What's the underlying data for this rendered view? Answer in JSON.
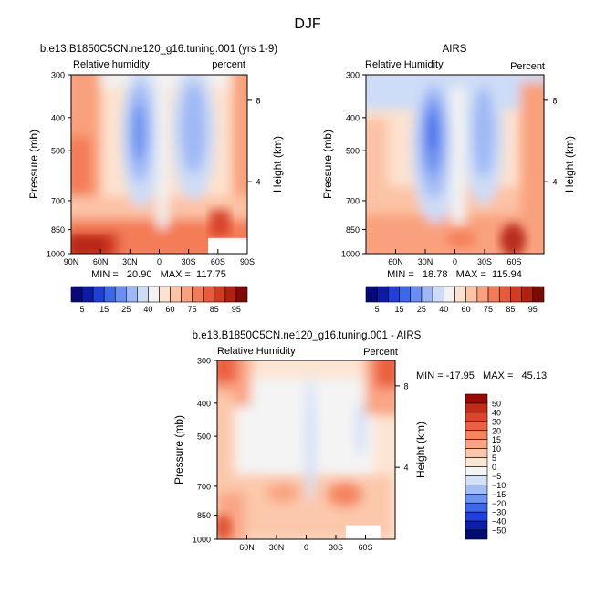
{
  "figure": {
    "title": "DJF"
  },
  "colors": {
    "abs_palette": [
      "#08087a",
      "#0d1aa8",
      "#1f3fd6",
      "#3a68e8",
      "#6a8ff0",
      "#9fb8f5",
      "#cddcf7",
      "#f2f2f2",
      "#fde2cf",
      "#fcc3a5",
      "#f9a07c",
      "#f47b57",
      "#e85a3a",
      "#d23a22",
      "#b22012",
      "#7e0a08"
    ],
    "diff_palette": [
      "#020b6e",
      "#0a1ea8",
      "#1f3fd6",
      "#3d68e8",
      "#6e93f0",
      "#a3bef5",
      "#d2e0f8",
      "#f4f4f4",
      "#fde5d3",
      "#fcc8ab",
      "#f9a584",
      "#f5845f",
      "#ec6140",
      "#dc4528",
      "#c02c15",
      "#990a06"
    ]
  },
  "chart_data": [
    {
      "type": "heatmap",
      "name": "model",
      "title": "b.e13.B1850C5CN.ne120_g16.tuning.001 (yrs 1-9)",
      "left_label": "Relative humidity",
      "right_label": "percent",
      "ylabel": "Pressure (mb)",
      "ylabel_right": "Height (km)",
      "yticks": [
        "300",
        "400",
        "500",
        "700",
        "850",
        "1000"
      ],
      "ytick_values": [
        300,
        400,
        500,
        700,
        850,
        1000
      ],
      "height_ticks": [
        "8",
        "4"
      ],
      "height_tick_pressures": [
        356,
        616
      ],
      "xticks": [
        "90N",
        "60N",
        "30N",
        "0",
        "30S",
        "60S",
        "90S"
      ],
      "xtick_values": [
        90,
        60,
        30,
        0,
        -30,
        -60,
        -90
      ],
      "xlim": [
        90,
        -90
      ],
      "ylim": [
        300,
        1000
      ],
      "stats": "MIN =   20.90   MAX =  117.75",
      "min": 20.9,
      "max": 117.75,
      "missing_box": {
        "lat_from": -50,
        "lat_to": -90,
        "p_from": 900,
        "p_to": 1000
      }
    },
    {
      "type": "heatmap",
      "name": "obs",
      "title": "AIRS",
      "left_label": "Relative Humidity",
      "right_label": "Percent",
      "ylabel": "Pressure (mb)",
      "ylabel_right": "Height (km)",
      "yticks": [
        "300",
        "400",
        "500",
        "700",
        "850",
        "1000"
      ],
      "ytick_values": [
        300,
        400,
        500,
        700,
        850,
        1000
      ],
      "height_ticks": [
        "8",
        "4"
      ],
      "height_tick_pressures": [
        356,
        616
      ],
      "xticks": [
        "60N",
        "30N",
        "0",
        "30S",
        "60S"
      ],
      "xtick_values": [
        60,
        30,
        0,
        -30,
        -60
      ],
      "xlim": [
        90,
        -90
      ],
      "ylim": [
        300,
        1000
      ],
      "stats": "MIN =   18.78   MAX =  115.94",
      "min": 18.78,
      "max": 115.94
    },
    {
      "type": "heatmap",
      "name": "diff",
      "title": "b.e13.B1850C5CN.ne120_g16.tuning.001 - AIRS",
      "left_label": "Relative Humidity",
      "right_label": "Percent",
      "ylabel": "Pressure (mb)",
      "ylabel_right": "Height (km)",
      "yticks": [
        "300",
        "400",
        "500",
        "700",
        "850",
        "1000"
      ],
      "ytick_values": [
        300,
        400,
        500,
        700,
        850,
        1000
      ],
      "height_ticks": [
        "8",
        "4"
      ],
      "height_tick_pressures": [
        356,
        616
      ],
      "xticks": [
        "60N",
        "30N",
        "0",
        "30S",
        "60S"
      ],
      "xtick_values": [
        60,
        30,
        0,
        -30,
        -60
      ],
      "xlim": [
        90,
        -90
      ],
      "ylim": [
        300,
        1000
      ],
      "stats": "MIN = -17.95   MAX =   45.13",
      "min": -17.95,
      "max": 45.13,
      "missing_box": {
        "lat_from": -40,
        "lat_to": -75,
        "p_from": 910,
        "p_to": 1000
      }
    }
  ],
  "colorbars": {
    "abs": {
      "labels": [
        "5",
        "15",
        "25",
        "40",
        "60",
        "75",
        "85",
        "95"
      ]
    },
    "diff": {
      "labels": [
        "50",
        "40",
        "30",
        "20",
        "15",
        "10",
        "5",
        "0",
        "−5",
        "−10",
        "−15",
        "−20",
        "−30",
        "−40",
        "−50"
      ]
    }
  }
}
